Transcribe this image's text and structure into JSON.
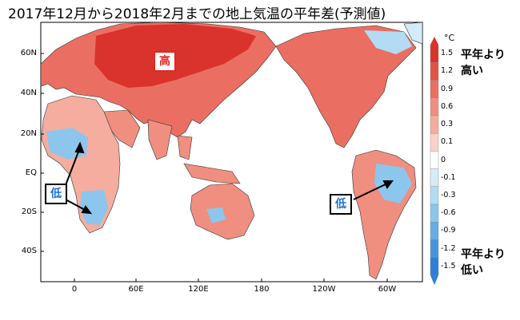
{
  "title": "2017年12月から2018年2月までの地上気温の平年差(予測値)",
  "axes": {
    "lat_labels": [
      "60N",
      "40N",
      "20N",
      "EQ",
      "20S",
      "40S"
    ],
    "lon_labels": [
      "0",
      "60E",
      "120E",
      "180",
      "120W",
      "60W"
    ]
  },
  "colorbar": {
    "unit": "°C",
    "ticks": [
      "1.5",
      "1.2",
      "0.9",
      "0.6",
      "0.3",
      "0.1",
      "0",
      "-0.1",
      "-0.3",
      "-0.6",
      "-0.9",
      "-1.2",
      "-1.5"
    ],
    "colors": [
      "#d9332b",
      "#e35246",
      "#ea6f62",
      "#f08e80",
      "#f5ad9f",
      "#fad1c8",
      "#ffffff",
      "#d4ecf8",
      "#b3dbf3",
      "#8cc6ec",
      "#65ade3",
      "#4494dc",
      "#2e7fd7"
    ],
    "high_label_line1": "平年より",
    "high_label_line2": "高い",
    "low_label_line1": "平年より",
    "low_label_line2": "低い"
  },
  "annotations": {
    "high": "高",
    "low_africa": "低",
    "low_samerica": "低"
  }
}
